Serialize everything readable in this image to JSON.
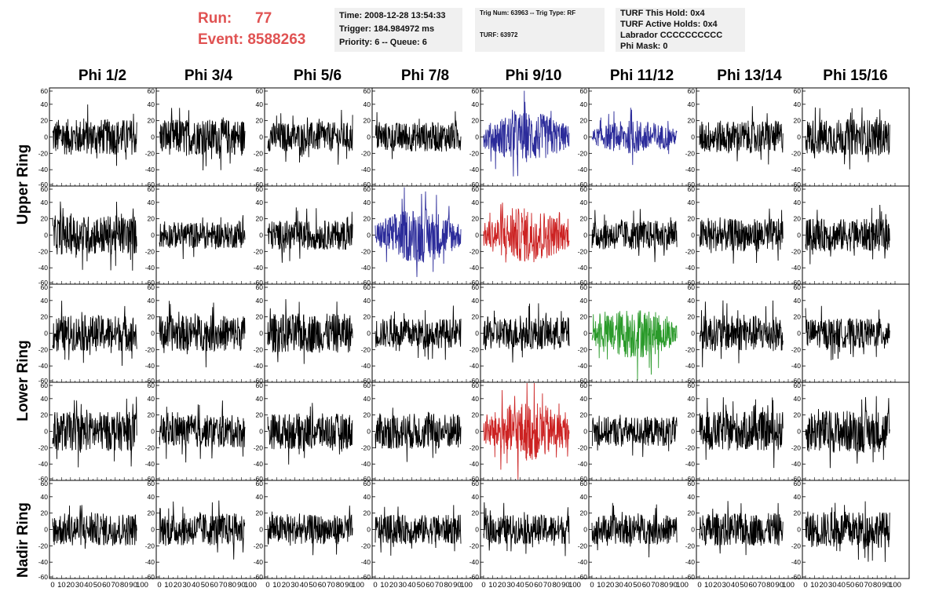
{
  "run_box": {
    "run_label": "Run:",
    "run_value": "77",
    "event_label": "Event:",
    "event_value": "8588263"
  },
  "info_time": {
    "time": "Time: 2008-12-28 13:54:33",
    "trigger": "Trigger: 184.984972 ms",
    "priority": "Priority: 6 -- Queue: 6"
  },
  "info_trig": {
    "trig": "Trig Num: 63963 -- Trig Type: RF",
    "turf": "TURF: 63972"
  },
  "info_turf": {
    "this_hold": "TURF This Hold: 0x4",
    "active_holds": "TURF Active Holds: 0x4",
    "labrador": "Labrador CCCCCCCCCC",
    "phi_mask": "Phi Mask: 0"
  },
  "columns": [
    "Phi 1/2",
    "Phi 3/4",
    "Phi 5/6",
    "Phi 7/8",
    "Phi 9/10",
    "Phi 11/12",
    "Phi 13/14",
    "Phi 15/16"
  ],
  "ring_labels": [
    "Upper Ring",
    "Lower Ring",
    "Nadir Ring"
  ],
  "y_ticks": [
    "60",
    "40",
    "20",
    "0",
    "-20",
    "-40",
    "-60"
  ],
  "x_ticks": [
    "0",
    "10",
    "20",
    "30",
    "40",
    "50",
    "60",
    "70",
    "80",
    "90",
    "100"
  ],
  "colors": {
    "normal": "#000000",
    "blue": "#2b2b9a",
    "red": "#cc2222",
    "green": "#2a9a2a",
    "header_red": "#e05252",
    "info_bg": "#f0f0f0"
  },
  "chart_data": {
    "type": "line",
    "title": "",
    "xlabel": "",
    "ylabel": "",
    "xlim": [
      0,
      100
    ],
    "ylim": [
      -60,
      60
    ],
    "rows": 5,
    "cols": 8,
    "highlighted_traces": [
      {
        "row": 0,
        "col": 4,
        "color": "blue"
      },
      {
        "row": 0,
        "col": 5,
        "color": "blue"
      },
      {
        "row": 1,
        "col": 3,
        "color": "blue"
      },
      {
        "row": 1,
        "col": 4,
        "color": "red"
      },
      {
        "row": 2,
        "col": 5,
        "color": "green"
      },
      {
        "row": 3,
        "col": 4,
        "color": "red"
      }
    ],
    "approx_amplitude": [
      [
        22,
        22,
        18,
        18,
        24,
        16,
        20,
        22
      ],
      [
        24,
        16,
        18,
        26,
        26,
        18,
        20,
        20
      ],
      [
        22,
        22,
        24,
        18,
        20,
        24,
        22,
        18
      ],
      [
        24,
        20,
        22,
        22,
        28,
        18,
        24,
        26
      ],
      [
        20,
        20,
        18,
        18,
        18,
        18,
        20,
        22
      ]
    ]
  }
}
